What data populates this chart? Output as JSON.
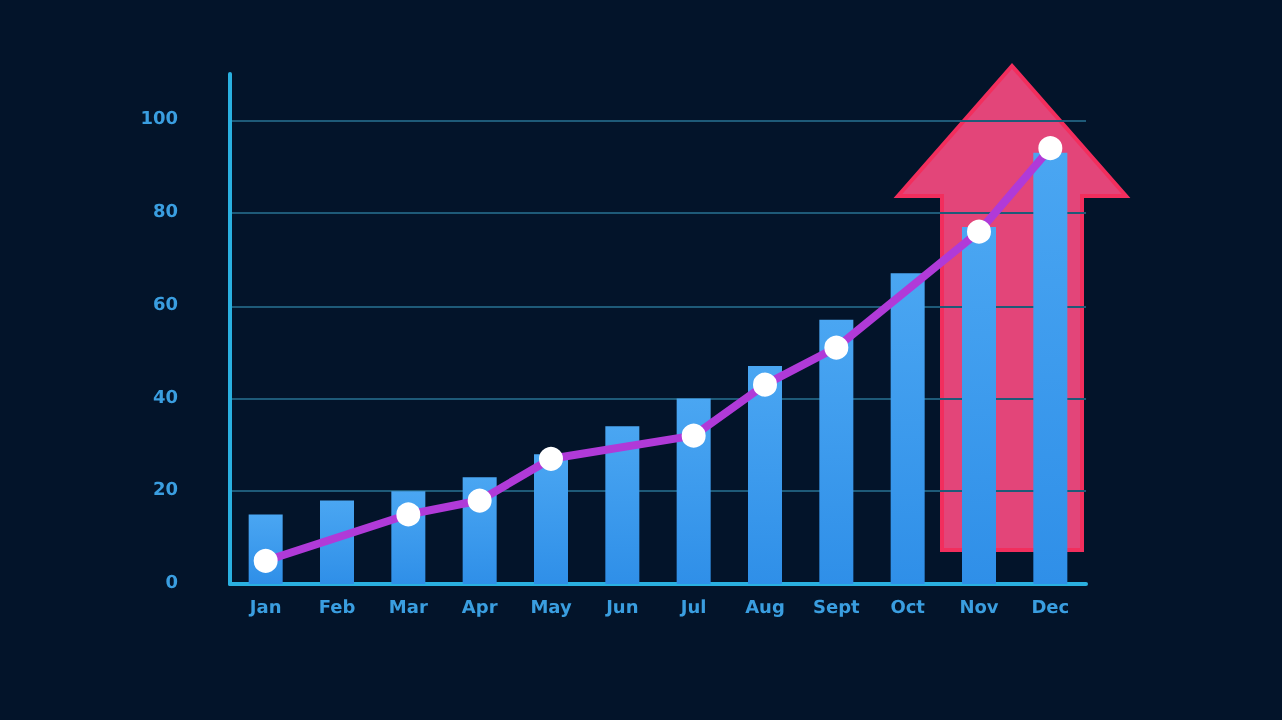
{
  "chart_data": {
    "type": "bar",
    "categories": [
      "Jan",
      "Feb",
      "Mar",
      "Apr",
      "May",
      "Jun",
      "Jul",
      "Aug",
      "Sept",
      "Oct",
      "Nov",
      "Dec"
    ],
    "series": [
      {
        "color": "#2f8fe8",
        "values": [
          15,
          18,
          20,
          23,
          28,
          34,
          40,
          47,
          57,
          67,
          77,
          93
        ]
      },
      {
        "type": "line",
        "color": "#b03ad8",
        "values": [
          5,
          null,
          15,
          18,
          27,
          null,
          32,
          43,
          51,
          null,
          76,
          94
        ],
        "marker": "circle"
      }
    ],
    "ylim": [
      0,
      110
    ],
    "yticks": [
      0,
      20,
      40,
      60,
      80,
      100
    ],
    "grid": "y"
  }
}
